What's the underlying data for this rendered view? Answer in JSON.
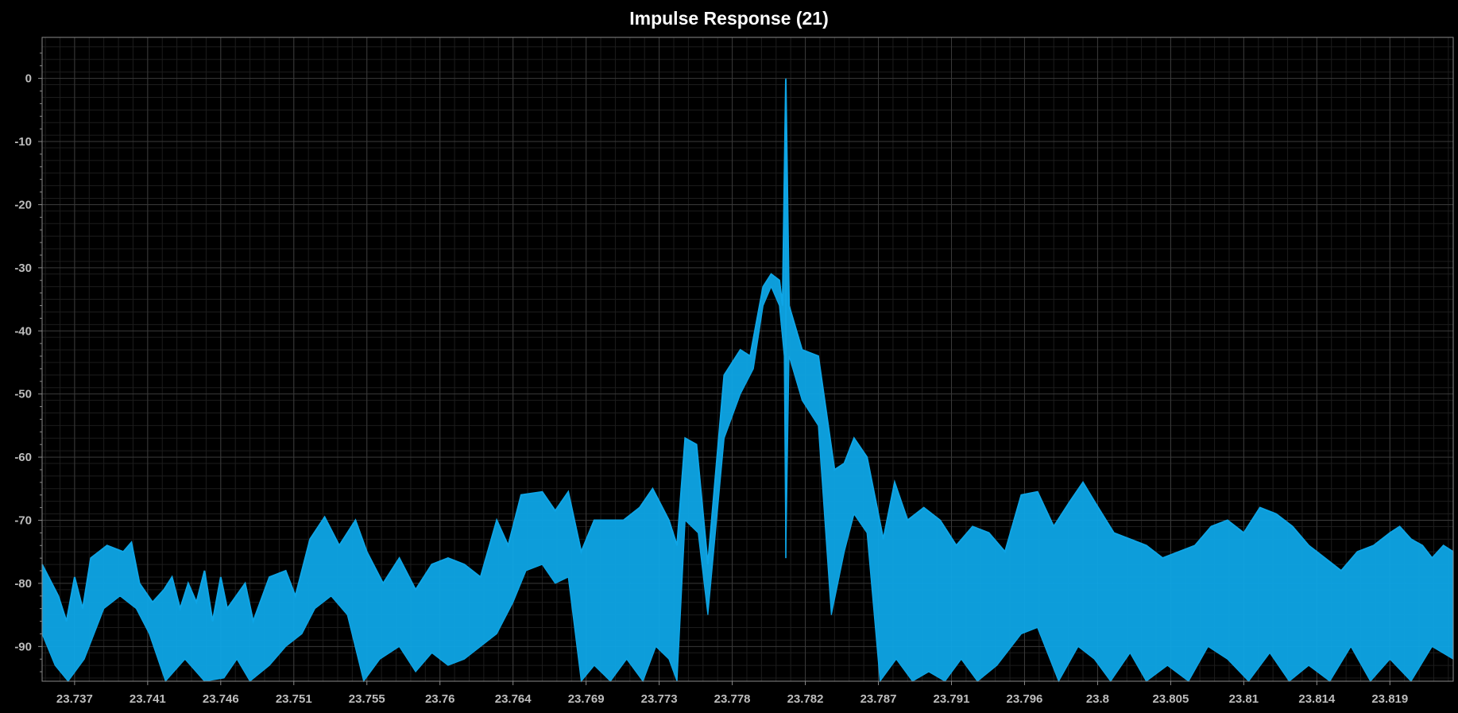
{
  "chart_data": {
    "type": "line",
    "title": "Impulse Response (21)",
    "xlabel": "",
    "ylabel": "",
    "xlim": [
      23.7352,
      23.8221
    ],
    "ylim": [
      -95.5,
      6.5
    ],
    "x_ticks": [
      "23.737",
      "23.741",
      "23.746",
      "23.751",
      "23.755",
      "23.76",
      "23.764",
      "23.769",
      "23.773",
      "23.778",
      "23.782",
      "23.787",
      "23.791",
      "23.796",
      "23.8",
      "23.805",
      "23.81",
      "23.814",
      "23.819"
    ],
    "x_tick_values": [
      23.7372,
      23.7417,
      23.7462,
      23.7507,
      23.7552,
      23.7597,
      23.7642,
      23.7687,
      23.7732,
      23.7777,
      23.7822,
      23.7867,
      23.7912,
      23.7957,
      23.8002,
      23.8047,
      23.8092,
      23.8137,
      23.8182
    ],
    "y_ticks": [
      0,
      -10,
      -20,
      -30,
      -40,
      -50,
      -60,
      -70,
      -80,
      -90
    ],
    "grid": true,
    "colors": {
      "series": "#0ea5e6",
      "grid_major": "#3a3a3a",
      "grid_minor": "#1c1c1c",
      "frame": "#8a8a8a"
    },
    "series": [
      {
        "upper": [
          [
            23.7352,
            -77
          ],
          [
            23.7362,
            -82
          ],
          [
            23.7367,
            -86
          ],
          [
            23.7372,
            -79
          ],
          [
            23.7377,
            -84
          ],
          [
            23.7382,
            -76
          ],
          [
            23.7392,
            -74
          ],
          [
            23.7402,
            -75
          ],
          [
            23.7407,
            -73.5
          ],
          [
            23.7412,
            -80
          ],
          [
            23.742,
            -83
          ],
          [
            23.7427,
            -81
          ],
          [
            23.7432,
            -79
          ],
          [
            23.7437,
            -84
          ],
          [
            23.7442,
            -80
          ],
          [
            23.7447,
            -83
          ],
          [
            23.7452,
            -78
          ],
          [
            23.7457,
            -86
          ],
          [
            23.7462,
            -79
          ],
          [
            23.7466,
            -84
          ],
          [
            23.7477,
            -80
          ],
          [
            23.7482,
            -86
          ],
          [
            23.7492,
            -79
          ],
          [
            23.7502,
            -78
          ],
          [
            23.7508,
            -82
          ],
          [
            23.7517,
            -73
          ],
          [
            23.7526,
            -69.5
          ],
          [
            23.7535,
            -74
          ],
          [
            23.7545,
            -70
          ],
          [
            23.7552,
            -75
          ],
          [
            23.7562,
            -80
          ],
          [
            23.7572,
            -76
          ],
          [
            23.7582,
            -81
          ],
          [
            23.7592,
            -77
          ],
          [
            23.7602,
            -76
          ],
          [
            23.7612,
            -77
          ],
          [
            23.7622,
            -79
          ],
          [
            23.7632,
            -70
          ],
          [
            23.7639,
            -74
          ],
          [
            23.7647,
            -66
          ],
          [
            23.766,
            -65.5
          ],
          [
            23.7668,
            -68.5
          ],
          [
            23.7676,
            -65.5
          ],
          [
            23.7684,
            -75
          ],
          [
            23.7692,
            -70
          ],
          [
            23.7702,
            -70
          ],
          [
            23.771,
            -70
          ],
          [
            23.772,
            -68
          ],
          [
            23.7728,
            -65
          ],
          [
            23.7738,
            -70
          ],
          [
            23.7743,
            -74
          ],
          [
            23.7748,
            -57
          ],
          [
            23.7755,
            -58
          ],
          [
            23.7762,
            -77
          ],
          [
            23.7772,
            -47
          ],
          [
            23.7782,
            -43
          ],
          [
            23.7788,
            -44
          ],
          [
            23.7796,
            -33
          ],
          [
            23.7801,
            -31
          ],
          [
            23.7806,
            -32
          ],
          [
            23.7808,
            -36
          ],
          [
            23.781,
            -0.2
          ],
          [
            23.7812,
            -36
          ],
          [
            23.782,
            -43
          ],
          [
            23.783,
            -44
          ],
          [
            23.784,
            -62
          ],
          [
            23.7846,
            -61
          ],
          [
            23.7852,
            -57
          ],
          [
            23.786,
            -60
          ],
          [
            23.787,
            -73
          ],
          [
            23.7877,
            -64
          ],
          [
            23.7885,
            -70
          ],
          [
            23.7895,
            -68
          ],
          [
            23.7905,
            -70
          ],
          [
            23.7915,
            -74
          ],
          [
            23.7925,
            -71
          ],
          [
            23.7935,
            -72
          ],
          [
            23.7945,
            -75
          ],
          [
            23.7955,
            -66
          ],
          [
            23.7965,
            -65.5
          ],
          [
            23.7975,
            -71
          ],
          [
            23.7985,
            -67
          ],
          [
            23.7993,
            -64
          ],
          [
            23.8,
            -67
          ],
          [
            23.8012,
            -72
          ],
          [
            23.8022,
            -73
          ],
          [
            23.8032,
            -74
          ],
          [
            23.8042,
            -76
          ],
          [
            23.8052,
            -75
          ],
          [
            23.8062,
            -74
          ],
          [
            23.8072,
            -71
          ],
          [
            23.8082,
            -70
          ],
          [
            23.8092,
            -72
          ],
          [
            23.8102,
            -68
          ],
          [
            23.8112,
            -69
          ],
          [
            23.8122,
            -71
          ],
          [
            23.8132,
            -74
          ],
          [
            23.8142,
            -76
          ],
          [
            23.8152,
            -78
          ],
          [
            23.8162,
            -75
          ],
          [
            23.8172,
            -74
          ],
          [
            23.8182,
            -72
          ],
          [
            23.8188,
            -71
          ],
          [
            23.8195,
            -73
          ],
          [
            23.8202,
            -74
          ],
          [
            23.8208,
            -76
          ],
          [
            23.8215,
            -74
          ],
          [
            23.8221,
            -75
          ]
        ],
        "lower": [
          [
            23.7352,
            -88
          ],
          [
            23.736,
            -93
          ],
          [
            23.7368,
            -95.5
          ],
          [
            23.7378,
            -92
          ],
          [
            23.739,
            -84
          ],
          [
            23.74,
            -82
          ],
          [
            23.741,
            -84
          ],
          [
            23.7418,
            -88
          ],
          [
            23.7428,
            -95.5
          ],
          [
            23.744,
            -92
          ],
          [
            23.7452,
            -95.5
          ],
          [
            23.7464,
            -95
          ],
          [
            23.7472,
            -92
          ],
          [
            23.748,
            -95.5
          ],
          [
            23.7492,
            -93
          ],
          [
            23.7502,
            -90
          ],
          [
            23.7512,
            -88
          ],
          [
            23.752,
            -84
          ],
          [
            23.753,
            -82
          ],
          [
            23.754,
            -85
          ],
          [
            23.755,
            -95.5
          ],
          [
            23.756,
            -92
          ],
          [
            23.7572,
            -90
          ],
          [
            23.7582,
            -94
          ],
          [
            23.7592,
            -91
          ],
          [
            23.7602,
            -93
          ],
          [
            23.7612,
            -92
          ],
          [
            23.7622,
            -90
          ],
          [
            23.7632,
            -88
          ],
          [
            23.7642,
            -83
          ],
          [
            23.765,
            -78
          ],
          [
            23.766,
            -77
          ],
          [
            23.7668,
            -80
          ],
          [
            23.7676,
            -79
          ],
          [
            23.7684,
            -95.5
          ],
          [
            23.7692,
            -93
          ],
          [
            23.7702,
            -95.5
          ],
          [
            23.7712,
            -92
          ],
          [
            23.7722,
            -95.5
          ],
          [
            23.773,
            -90
          ],
          [
            23.7738,
            -92
          ],
          [
            23.7743,
            -95.5
          ],
          [
            23.7748,
            -70
          ],
          [
            23.7756,
            -72
          ],
          [
            23.7762,
            -85
          ],
          [
            23.7772,
            -57
          ],
          [
            23.7782,
            -50
          ],
          [
            23.779,
            -46
          ],
          [
            23.7796,
            -36
          ],
          [
            23.7801,
            -33
          ],
          [
            23.7806,
            -36
          ],
          [
            23.7809,
            -44
          ],
          [
            23.781,
            -76
          ],
          [
            23.7812,
            -44
          ],
          [
            23.782,
            -51
          ],
          [
            23.783,
            -55
          ],
          [
            23.7838,
            -85
          ],
          [
            23.7846,
            -75
          ],
          [
            23.7852,
            -69
          ],
          [
            23.786,
            -72
          ],
          [
            23.7868,
            -95.5
          ],
          [
            23.7878,
            -92
          ],
          [
            23.7888,
            -95.5
          ],
          [
            23.7898,
            -94
          ],
          [
            23.7908,
            -95.5
          ],
          [
            23.7918,
            -92
          ],
          [
            23.7928,
            -95.5
          ],
          [
            23.794,
            -93
          ],
          [
            23.7955,
            -88
          ],
          [
            23.7965,
            -87
          ],
          [
            23.7978,
            -95.5
          ],
          [
            23.799,
            -90
          ],
          [
            23.8,
            -92
          ],
          [
            23.801,
            -95.5
          ],
          [
            23.8022,
            -91
          ],
          [
            23.8032,
            -95.5
          ],
          [
            23.8045,
            -93
          ],
          [
            23.8058,
            -95.5
          ],
          [
            23.807,
            -90
          ],
          [
            23.8082,
            -92
          ],
          [
            23.8095,
            -95.5
          ],
          [
            23.8108,
            -91
          ],
          [
            23.812,
            -95.5
          ],
          [
            23.8132,
            -93
          ],
          [
            23.8145,
            -95.5
          ],
          [
            23.8158,
            -90
          ],
          [
            23.817,
            -95.5
          ],
          [
            23.8182,
            -92
          ],
          [
            23.8195,
            -95.5
          ],
          [
            23.8208,
            -90
          ],
          [
            23.8221,
            -92
          ]
        ],
        "impulse_x": 23.781,
        "impulse_peak": 0
      }
    ]
  }
}
